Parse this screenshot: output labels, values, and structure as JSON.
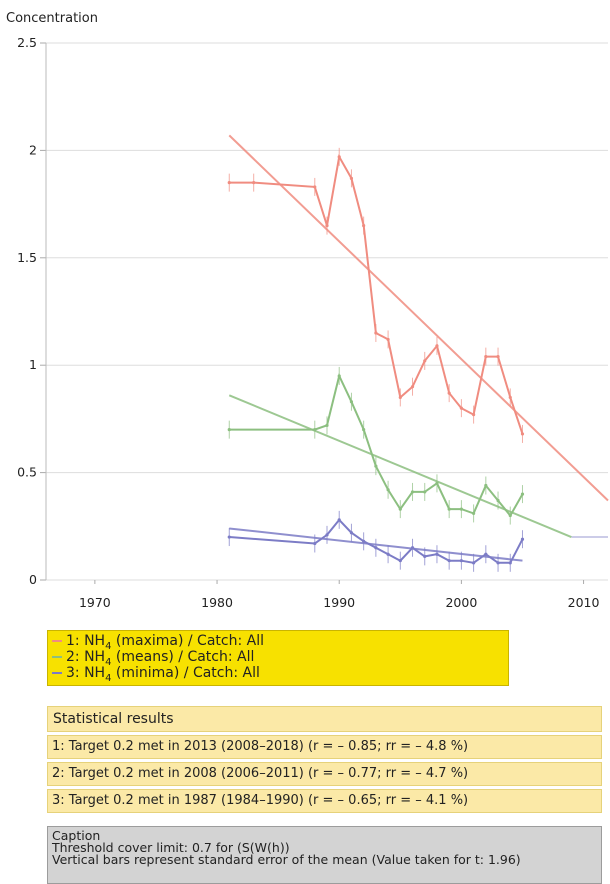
{
  "chart_data": {
    "type": "line",
    "ylabel": "Concentration",
    "xlabel": "",
    "xlim": [
      1966,
      2012
    ],
    "ylim": [
      0,
      2.5
    ],
    "xticks": [
      1970,
      1980,
      1990,
      2000,
      2010
    ],
    "yticks": [
      0,
      0.5,
      1,
      1.5,
      2,
      2.5
    ],
    "ytick_labels": [
      "0",
      "0.5",
      "1",
      "1.5",
      "2",
      "2.5"
    ],
    "grid": "horizontal",
    "threshold": 0.2,
    "series": [
      {
        "name": "1: NH4 (maxima) / Catch: All",
        "color": "#f08c80",
        "x": [
          1981,
          1983,
          1988,
          1989,
          1990,
          1991,
          1992,
          1993,
          1994,
          1995,
          1996,
          1997,
          1998,
          1999,
          2000,
          2001,
          2002,
          2003,
          2004,
          2005
        ],
        "y": [
          1.85,
          1.85,
          1.83,
          1.65,
          1.97,
          1.87,
          1.65,
          1.15,
          1.12,
          0.85,
          0.9,
          1.02,
          1.09,
          0.87,
          0.8,
          0.77,
          1.04,
          1.04,
          0.85,
          0.68
        ],
        "trend": [
          [
            1981,
            2.07
          ],
          [
            2012,
            0.37
          ]
        ]
      },
      {
        "name": "2: NH4 (means) / Catch: All",
        "color": "#8cbf80",
        "x": [
          1981,
          1988,
          1989,
          1990,
          1991,
          1992,
          1993,
          1994,
          1995,
          1996,
          1997,
          1998,
          1999,
          2000,
          2001,
          2002,
          2003,
          2004,
          2005
        ],
        "y": [
          0.7,
          0.7,
          0.72,
          0.95,
          0.83,
          0.7,
          0.53,
          0.42,
          0.33,
          0.41,
          0.41,
          0.45,
          0.33,
          0.33,
          0.31,
          0.44,
          0.37,
          0.3,
          0.4
        ],
        "trend": [
          [
            1981,
            0.86
          ],
          [
            2009,
            0.2
          ]
        ]
      },
      {
        "name": "3: NH4 (minima) / Catch: All",
        "color": "#7c7cc6",
        "x": [
          1981,
          1988,
          1989,
          1990,
          1991,
          1992,
          1993,
          1994,
          1995,
          1996,
          1997,
          1998,
          1999,
          2000,
          2001,
          2002,
          2003,
          2004,
          2005
        ],
        "y": [
          0.2,
          0.17,
          0.21,
          0.28,
          0.22,
          0.18,
          0.15,
          0.12,
          0.09,
          0.15,
          0.11,
          0.12,
          0.09,
          0.09,
          0.08,
          0.12,
          0.08,
          0.08,
          0.19
        ],
        "trend": [
          [
            1981,
            0.24
          ],
          [
            2005,
            0.09
          ]
        ]
      }
    ]
  },
  "legend": {
    "items": [
      {
        "label": "1: NH",
        "sub": "4",
        "rest": " (maxima) / Catch: All",
        "color": "#f08c80"
      },
      {
        "label": "2: NH",
        "sub": "4",
        "rest": " (means) / Catch: All",
        "color": "#8cbf80"
      },
      {
        "label": "3: NH",
        "sub": "4",
        "rest": " (minima) / Catch: All",
        "color": "#7c7cc6"
      }
    ]
  },
  "stats": {
    "title": "Statistical results",
    "rows": [
      "1: Target 0.2 met in 2013 (2008–2018) (r = – 0.85; rr = – 4.8 %)",
      "2: Target 0.2 met in 2008 (2006–2011) (r = – 0.77; rr = – 4.7 %)",
      "3: Target 0.2 met in 1987 (1984–1990) (r = – 0.65; rr = – 4.1 %)"
    ]
  },
  "caption": {
    "title": "Caption",
    "line1": "Threshold cover limit: 0.7 for (S(W(h))",
    "line2": "Vertical bars represent standard error of the mean (Value taken for t: 1.96)"
  }
}
